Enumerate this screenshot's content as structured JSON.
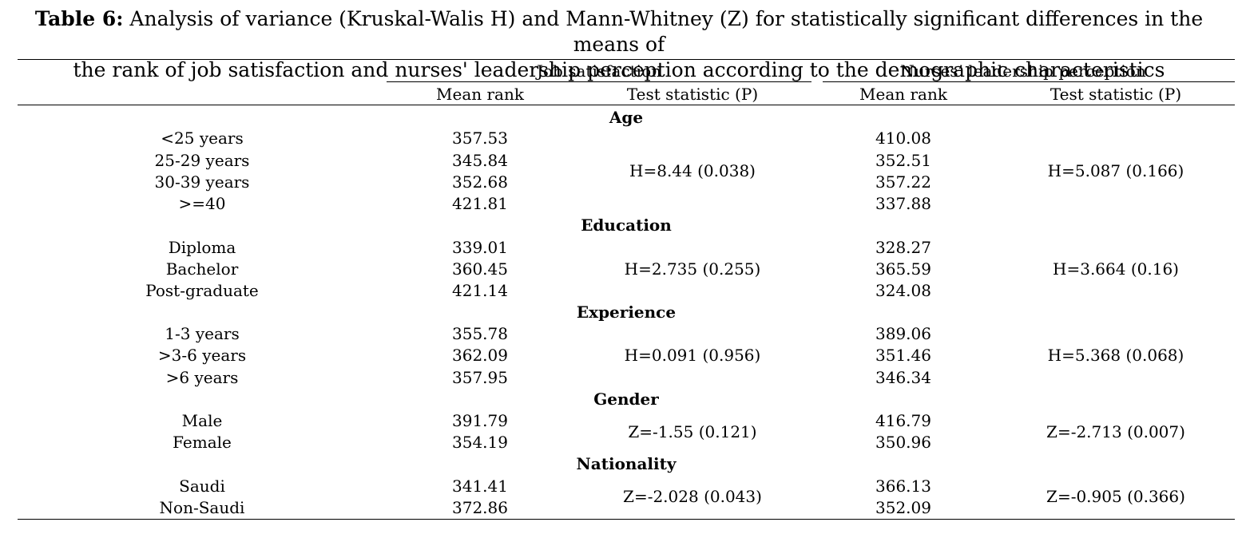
{
  "caption": {
    "label": "Table 6:",
    "line1": " Analysis of variance (Kruskal-Walis H) and Mann-Whitney (Z) for statistically significant differences in the means of",
    "line2": "the rank of job satisfaction and nurses' leadership perception according to the demographic characteristics"
  },
  "header": {
    "group1": "Job satisfaction",
    "group2": "Nurses’ leadership perception",
    "mean_rank_1": "Mean rank",
    "test_stat_1": "Test statistic (P)",
    "mean_rank_2": "Mean rank",
    "test_stat_2": "Test statistic (P)"
  },
  "sections": [
    {
      "title": "Age",
      "rows": [
        {
          "label": "<25 years",
          "js": "357.53",
          "lp": "410.08"
        },
        {
          "label": "25-29 years",
          "js": "345.84",
          "lp": "352.51"
        },
        {
          "label": "30-39 years",
          "js": "352.68",
          "lp": "357.22"
        },
        {
          "label": ">=40",
          "js": "421.81",
          "lp": "337.88"
        }
      ],
      "js_test": "H=8.44 (0.038)",
      "lp_test": "H=5.087 (0.166)"
    },
    {
      "title": "Education",
      "rows": [
        {
          "label": "Diploma",
          "js": "339.01",
          "lp": "328.27"
        },
        {
          "label": "Bachelor",
          "js": "360.45",
          "lp": "365.59"
        },
        {
          "label": "Post-graduate",
          "js": "421.14",
          "lp": "324.08"
        }
      ],
      "js_test": "H=2.735 (0.255)",
      "lp_test": "H=3.664 (0.16)"
    },
    {
      "title": "Experience",
      "rows": [
        {
          "label": "1-3 years",
          "js": "355.78",
          "lp": "389.06"
        },
        {
          "label": ">3-6 years",
          "js": "362.09",
          "lp": "351.46"
        },
        {
          "label": ">6 years",
          "js": "357.95",
          "lp": "346.34"
        }
      ],
      "js_test": "H=0.091 (0.956)",
      "lp_test": "H=5.368 (0.068)"
    },
    {
      "title": "Gender",
      "rows": [
        {
          "label": "Male",
          "js": "391.79",
          "lp": "416.79"
        },
        {
          "label": "Female",
          "js": "354.19",
          "lp": "350.96"
        }
      ],
      "js_test": "Z=-1.55 (0.121)",
      "lp_test": "Z=-2.713 (0.007)"
    },
    {
      "title": "Nationality",
      "rows": [
        {
          "label": "Saudi",
          "js": "341.41",
          "lp": "366.13"
        },
        {
          "label": "Non-Saudi",
          "js": "372.86",
          "lp": "352.09"
        }
      ],
      "js_test": "Z=-2.028 (0.043)",
      "lp_test": "Z=-0.905 (0.366)"
    }
  ]
}
